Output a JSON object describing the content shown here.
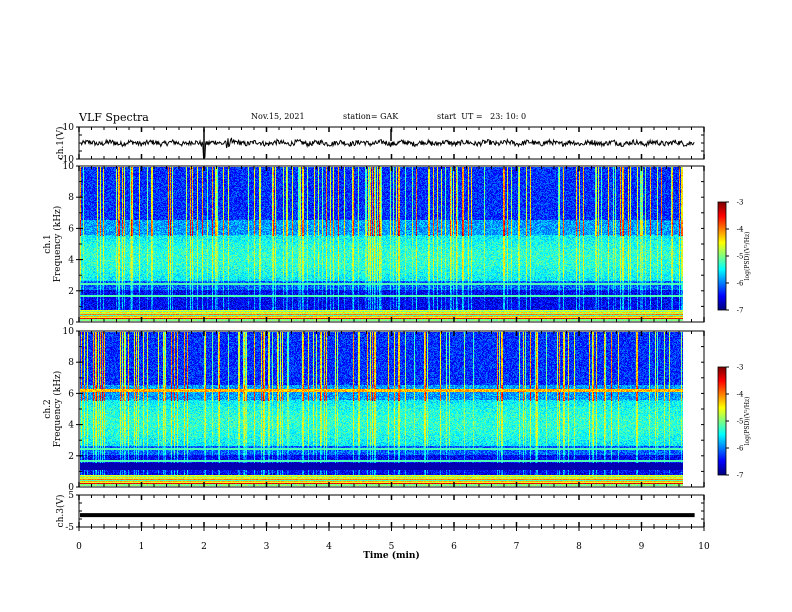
{
  "header": {
    "title": "VLF Spectra",
    "date": "Nov.15, 2021",
    "station": "station= GAK",
    "start": "start  UT =   23: 10: 0"
  },
  "chart_data": [
    {
      "type": "line",
      "panel": "ch.1 waveform",
      "ylabel": "ch.1(V)",
      "ylim": [
        -10,
        10
      ],
      "yticks": [
        "10",
        "-10"
      ],
      "xlim": [
        0,
        10
      ],
      "series": [
        {
          "values_note_mean": 0
        }
      ],
      "line_color": "#000000"
    },
    {
      "type": "heatmap",
      "panel": "ch.1 spectrogram",
      "ylabel": "ch.1\nFrequency (kHz)",
      "ylabel_lines": [
        "ch.1",
        "Frequency (kHz)"
      ],
      "ylim": [
        0,
        10
      ],
      "yticks": [
        "0",
        "2",
        "4",
        "6",
        "8",
        "10"
      ],
      "xlim": [
        0,
        10
      ],
      "colorbar": {
        "label": "log(PSD)(V²/Hz)",
        "range": [
          -7,
          -3
        ],
        "ticks": [
          "-3",
          "-4",
          "-5",
          "-6",
          "-7"
        ]
      }
    },
    {
      "type": "heatmap",
      "panel": "ch.2 spectrogram",
      "ylabel": "ch.2\nFrequency (kHz)",
      "ylabel_lines": [
        "ch.2",
        "Frequency (kHz)"
      ],
      "ylim": [
        0,
        10
      ],
      "yticks": [
        "0",
        "2",
        "4",
        "6",
        "8",
        "10"
      ],
      "xlim": [
        0,
        10
      ],
      "colorbar": {
        "label": "log(PSD)(V²/Hz)",
        "range": [
          -7,
          -3
        ],
        "ticks": [
          "-3",
          "-4",
          "-5",
          "-6",
          "-7"
        ]
      }
    },
    {
      "type": "line",
      "panel": "ch.3 waveform",
      "ylabel": "ch.3(V)",
      "ylim": [
        -5,
        5
      ],
      "yticks": [
        "5",
        "-5"
      ],
      "xlim": [
        0,
        10
      ],
      "series": [
        {
          "constant_value": -1.3
        }
      ],
      "line_color": "#000000"
    }
  ],
  "xaxis": {
    "label": "Time (min)",
    "ticks": [
      "0",
      "1",
      "2",
      "3",
      "4",
      "5",
      "6",
      "7",
      "8",
      "9",
      "10"
    ],
    "data_end": 9.85
  },
  "colors": {
    "jet": [
      "#00007f",
      "#0000ff",
      "#007fff",
      "#00ffff",
      "#7fff7f",
      "#ffff00",
      "#ff7f00",
      "#ff0000",
      "#7f0000"
    ]
  }
}
